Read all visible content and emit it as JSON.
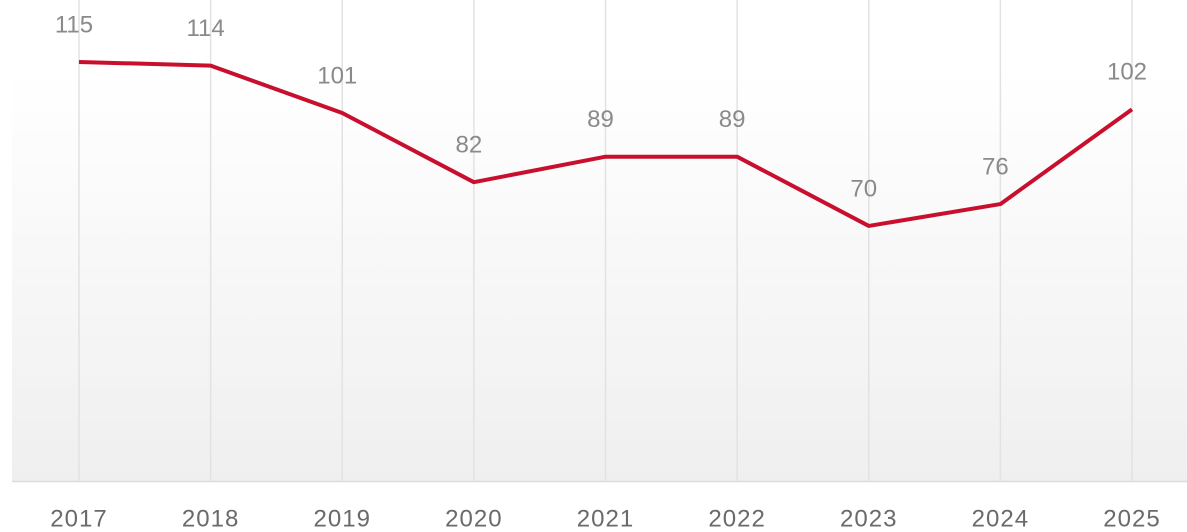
{
  "chart_data": {
    "type": "line",
    "categories": [
      "2017",
      "2018",
      "2019",
      "2020",
      "2021",
      "2022",
      "2023",
      "2024",
      "2025"
    ],
    "values": [
      115,
      114,
      101,
      82,
      89,
      89,
      70,
      76,
      102
    ],
    "color": "#c8102e",
    "ylim": [
      0,
      130
    ],
    "grid": true
  }
}
